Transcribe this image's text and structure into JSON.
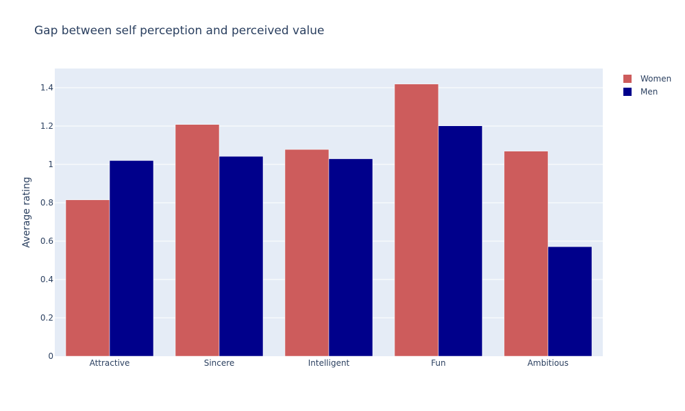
{
  "chart_data": {
    "type": "bar",
    "title": "Gap between self perception and perceived value",
    "xlabel": "",
    "ylabel": "Average rating",
    "categories": [
      "Attractive",
      "Sincere",
      "Intelligent",
      "Fun",
      "Ambitious"
    ],
    "series": [
      {
        "name": "Women",
        "color": "#cd5c5c",
        "values": [
          0.815,
          1.208,
          1.078,
          1.419,
          1.069
        ]
      },
      {
        "name": "Men",
        "color": "#00008b",
        "values": [
          1.02,
          1.042,
          1.029,
          1.201,
          0.571
        ]
      }
    ],
    "ylim": [
      0,
      1.5
    ],
    "yticks": [
      0,
      0.2,
      0.4,
      0.6,
      0.8,
      1,
      1.2,
      1.4
    ],
    "ytick_labels": [
      "0",
      "0.2",
      "0.4",
      "0.6",
      "0.8",
      "1",
      "1.2",
      "1.4"
    ],
    "grid": true,
    "legend_position": "top-right",
    "plot_background": "#e5ecf6",
    "text_color": "#2a3f5f",
    "grid_color": "#ffffff"
  }
}
